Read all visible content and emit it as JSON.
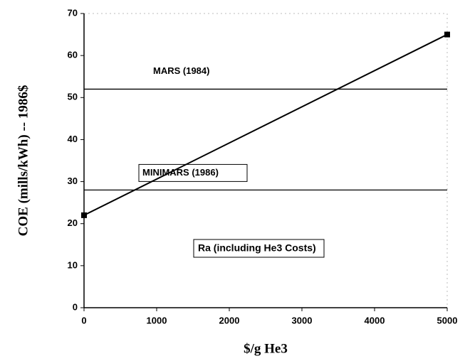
{
  "chart_data": {
    "type": "line",
    "xlabel": "$/g He3",
    "ylabel": "COE (mills/kWh) -- 1986$",
    "x": [
      0,
      5000
    ],
    "series": [
      {
        "name": "Ra (including He3 Costs)",
        "color": "#000000",
        "values": [
          22,
          65
        ]
      }
    ],
    "reference_lines": [
      {
        "label": "MARS (1984)",
        "value": 52
      },
      {
        "label": "MINIMARS (1986)",
        "value": 28
      }
    ],
    "xlim": [
      0,
      5000
    ],
    "xticks": [
      0,
      1000,
      2000,
      3000,
      4000,
      5000
    ],
    "ylim": [
      0,
      70
    ],
    "yticks": [
      0,
      10,
      20,
      30,
      40,
      50,
      60,
      70
    ]
  }
}
